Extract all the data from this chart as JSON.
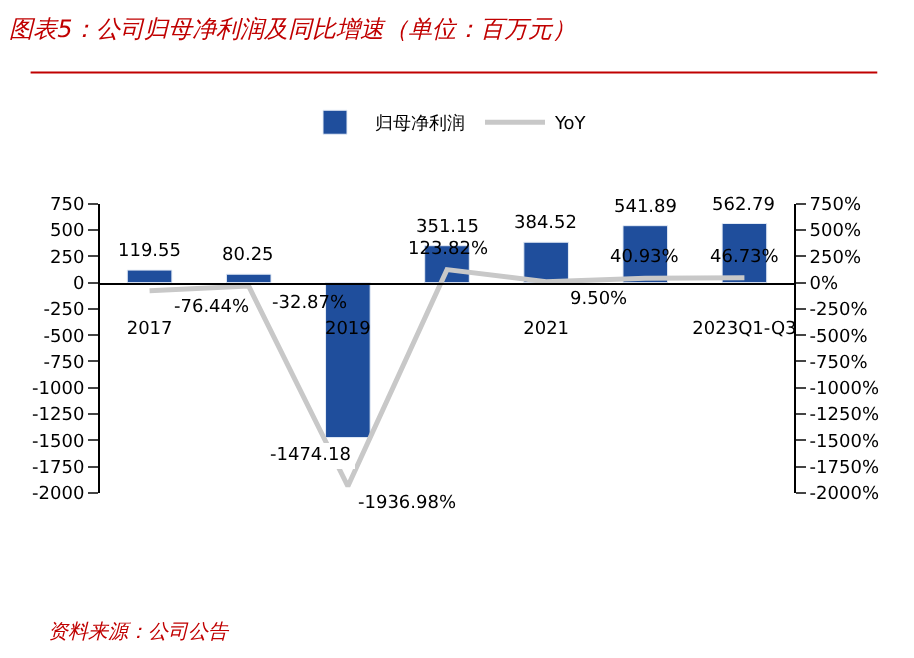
{
  "chart_data": {
    "type": "bar",
    "title": "图表5：公司归母净利润及同比增速（单位：百万元）",
    "categories": [
      "2017",
      null,
      "2019",
      null,
      "2021",
      null,
      "2023Q1-Q3"
    ],
    "series": [
      {
        "name": "归母净利润",
        "color": "#1f4e9c",
        "values": [
          119.55,
          80.25,
          -1474.18,
          351.15,
          384.52,
          541.89,
          562.79
        ]
      },
      {
        "name": "YoY",
        "type": "line",
        "axis": "y2",
        "color": "#c8c8c8",
        "values": [
          -76.44,
          -32.87,
          -1936.98,
          123.82,
          9.5,
          40.93,
          46.73
        ],
        "value_labels": [
          "-76.44%",
          "-32.87%",
          "-1936.98%",
          "123.82%",
          "9.50%",
          "40.93%",
          "46.73%"
        ]
      }
    ],
    "data_labels": true,
    "ylim": [
      -2000,
      750
    ],
    "yticks": [
      -2000,
      -1750,
      -1500,
      -1250,
      -1000,
      -750,
      -500,
      -250,
      0,
      250,
      500,
      750
    ],
    "y2lim": [
      -2000,
      750
    ],
    "y2ticks": [
      {
        "value": -2000,
        "label": "-2000%"
      },
      {
        "value": -1750,
        "label": "-1750%"
      },
      {
        "value": -1500,
        "label": "-1500%"
      },
      {
        "value": -1250,
        "label": "-1250%"
      },
      {
        "value": -1000,
        "label": "-1000%"
      },
      {
        "value": -750,
        "label": "-750%"
      },
      {
        "value": -500,
        "label": "-500%"
      },
      {
        "value": -250,
        "label": "-250%"
      },
      {
        "value": 0,
        "label": "0%"
      },
      {
        "value": 250,
        "label": "250%"
      },
      {
        "value": 500,
        "label": "500%"
      },
      {
        "value": 750,
        "label": "750%"
      }
    ],
    "legend": "top",
    "marker": "none",
    "annotations": [
      "资料来源：公司公告"
    ]
  }
}
